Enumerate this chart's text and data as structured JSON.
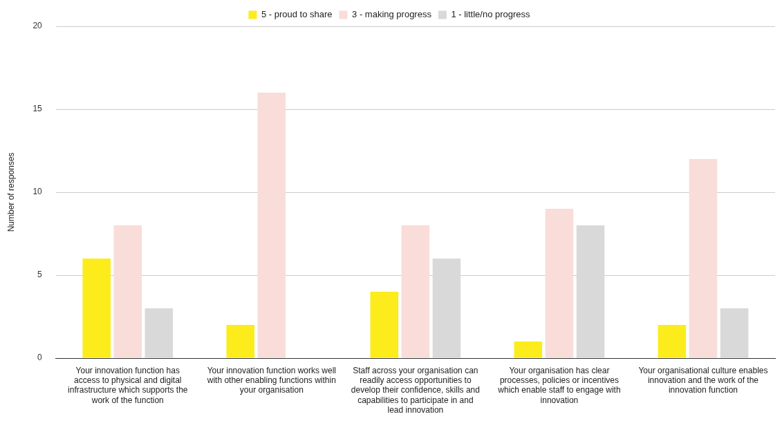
{
  "chart_data": {
    "type": "bar",
    "ylabel": "Number of responses",
    "categories": [
      "Your innovation function has access to physical and digital infrastructure which supports the work of the function",
      "Your innovation function works well with other enabling functions within your organisation",
      "Staff across your organisation can readily access opportunities to develop their confidence, skills and capabilities to participate in and lead innovation",
      "Your organisation has clear processes, policies or incentives which enable staff to engage with innovation",
      "Your organisational culture enables innovation and the work of the innovation function"
    ],
    "series": [
      {
        "name": "5 - proud to share",
        "color": "#fcec1c",
        "values": [
          6,
          2,
          4,
          1,
          2
        ]
      },
      {
        "name": "3 - making progress",
        "color": "#f9ddd8",
        "values": [
          8,
          16,
          8,
          9,
          12
        ]
      },
      {
        "name": "1 - little/no progress",
        "color": "#d9d9d9",
        "values": [
          3,
          0,
          6,
          8,
          3
        ]
      }
    ],
    "ylim": [
      0,
      20
    ],
    "yticks": [
      0,
      5,
      10,
      15,
      20
    ],
    "grid": "y",
    "legend": "top"
  }
}
